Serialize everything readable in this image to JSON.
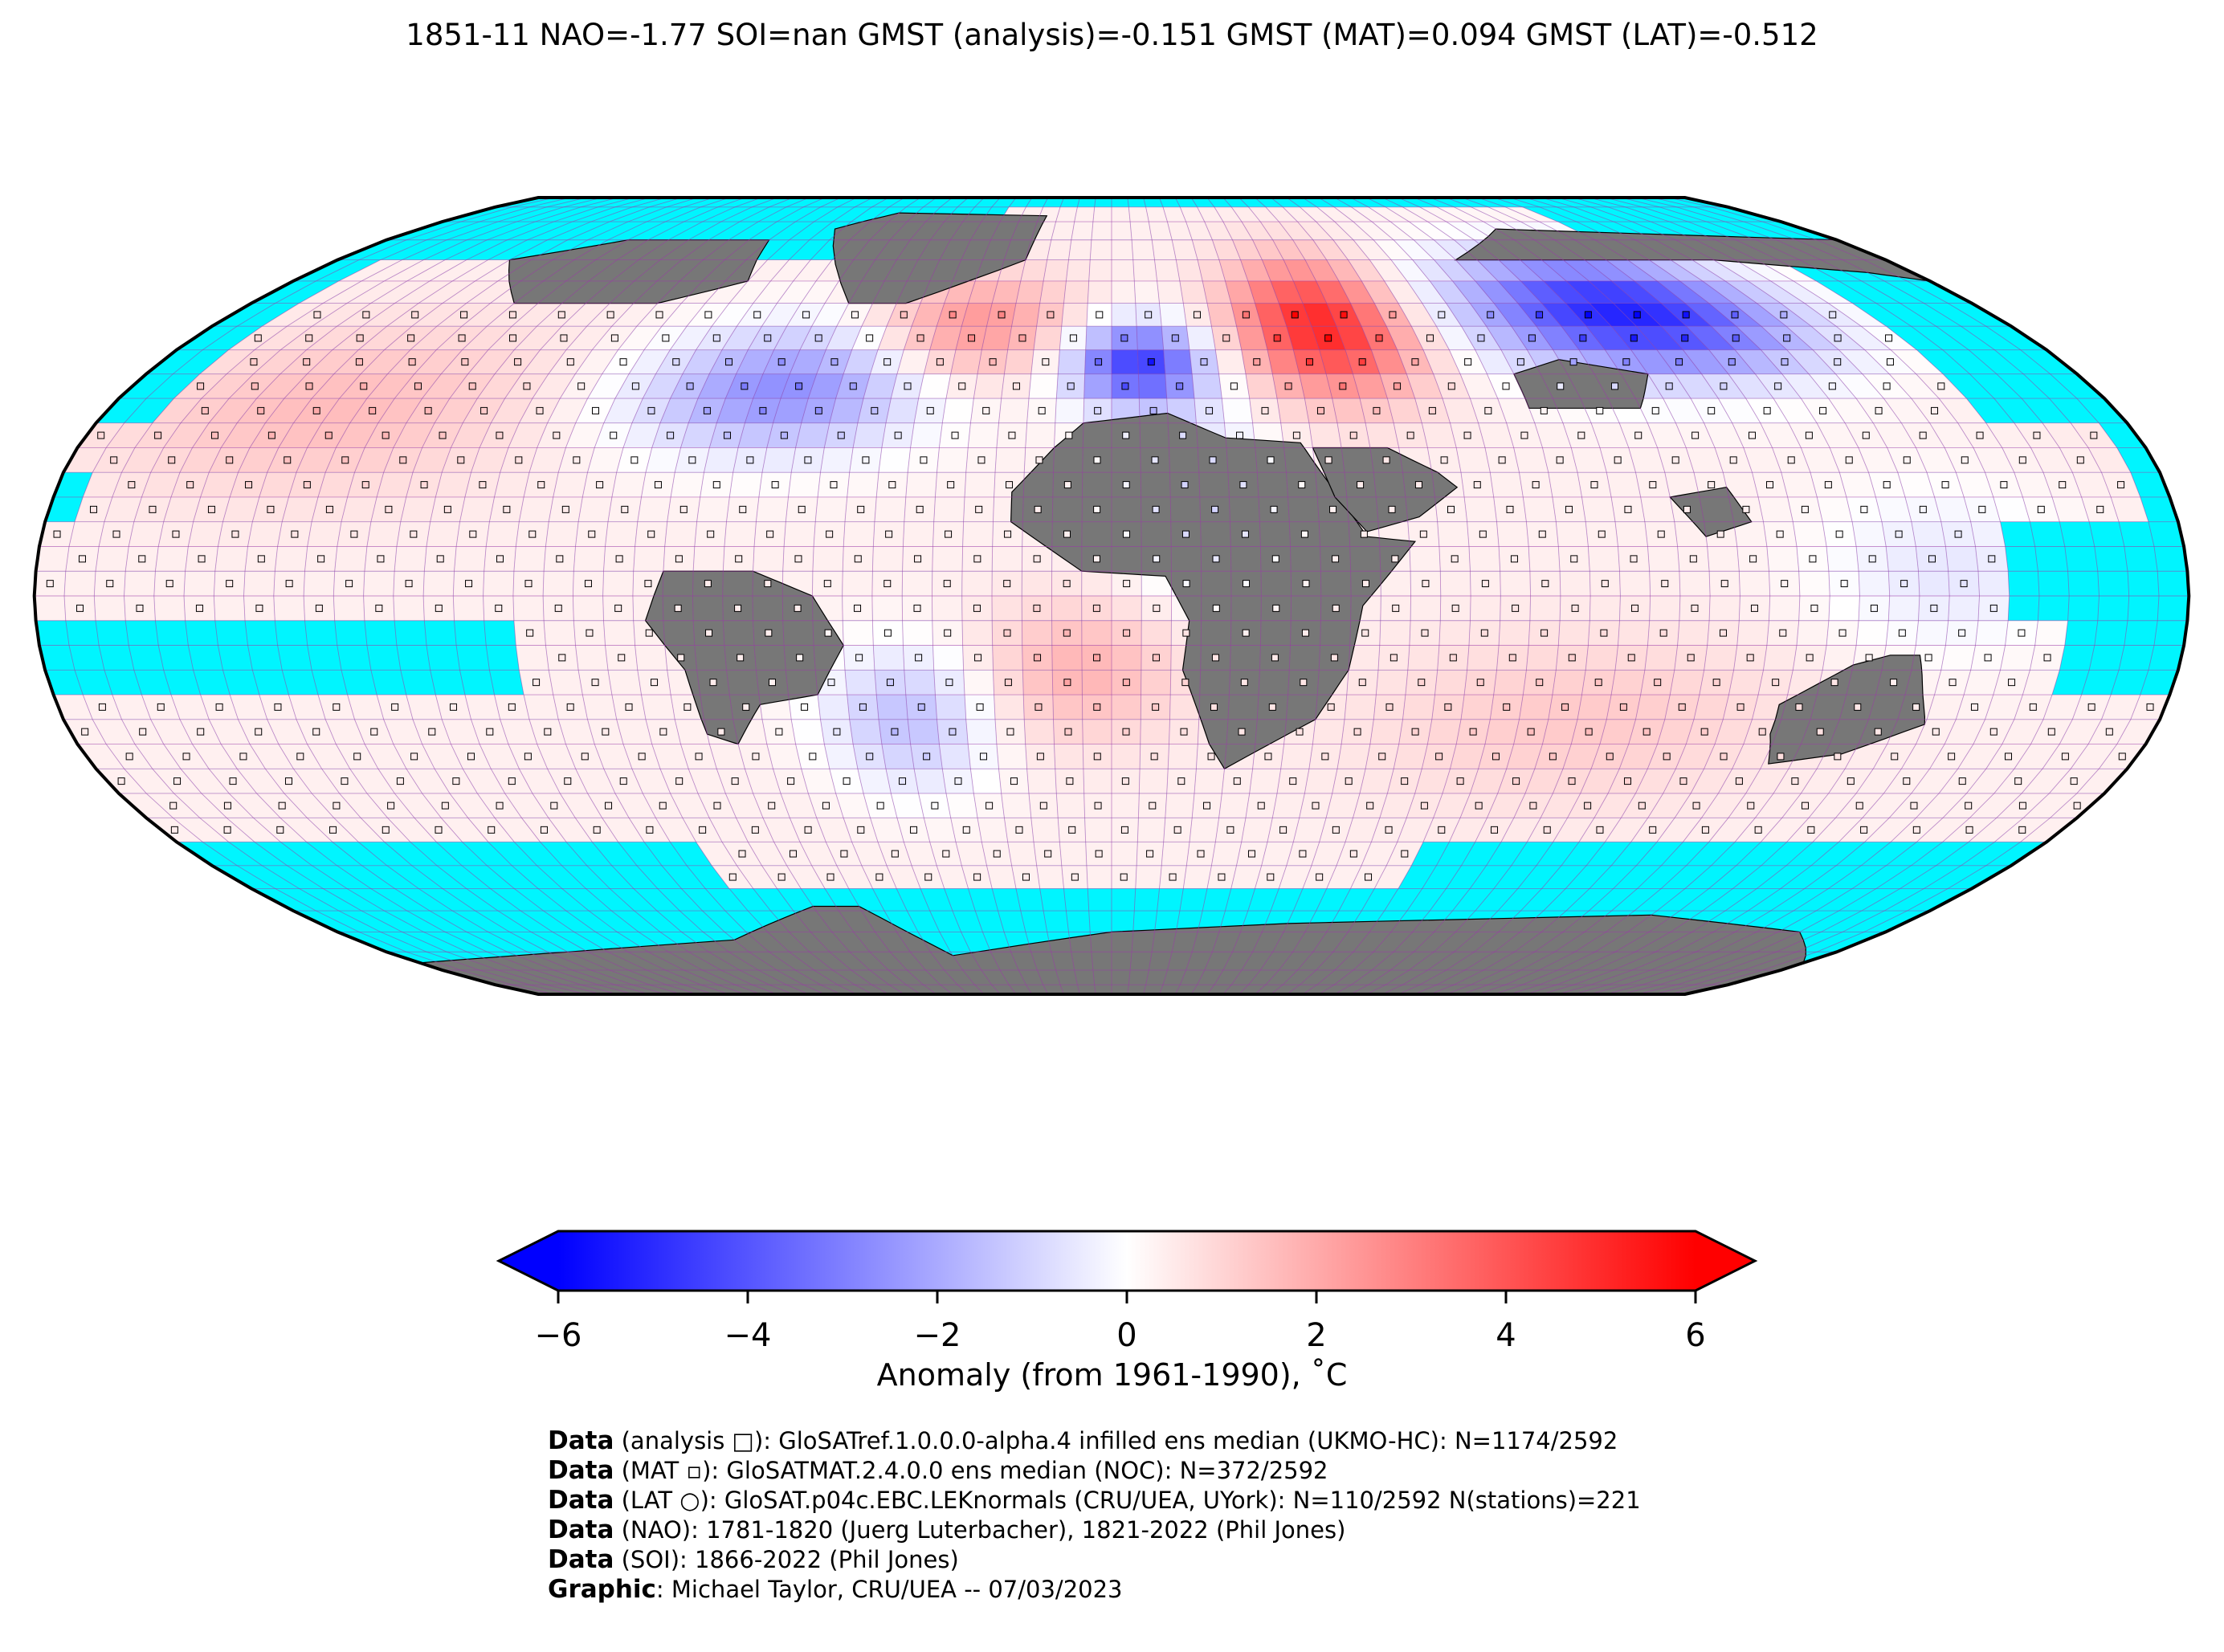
{
  "title": "1851-11 NAO=-1.77 SOI=nan GMST (analysis)=-0.151 GMST (MAT)=0.094 GMST (LAT)=-0.512",
  "map": {
    "projection": "Robinson",
    "ocean_color": "#00f5ff",
    "land_nodata_color": "#777777",
    "grid_line_color": "#9b3aa8",
    "coastline_color": "#000000",
    "grid_resolution_deg": 5,
    "anomaly_regions": [
      {
        "region": "North Atlantic / North America east",
        "anomaly": -3.0
      },
      {
        "region": "Western Europe",
        "anomaly": -5.0
      },
      {
        "region": "Eastern Europe / Western Russia",
        "anomaly": 5.0
      },
      {
        "region": "Central Siberia",
        "anomaly": -5.5
      },
      {
        "region": "Mid North Atlantic",
        "anomaly": 2.5
      },
      {
        "region": "North Pacific",
        "anomaly": 1.0
      },
      {
        "region": "South Atlantic off Brazil",
        "anomaly": -2.0
      },
      {
        "region": "South Atlantic central",
        "anomaly": 1.5
      },
      {
        "region": "Indian Ocean",
        "anomaly": 1.0
      },
      {
        "region": "Western Pacific tropics",
        "anomaly": -1.0
      }
    ]
  },
  "colorbar": {
    "colormap": "bwr",
    "min": -6,
    "max": 6,
    "extend": "both",
    "tick_labels": [
      "−6",
      "−4",
      "−2",
      "0",
      "2",
      "4",
      "6"
    ],
    "tick_values": [
      -6,
      -4,
      -2,
      0,
      2,
      4,
      6
    ],
    "label": "Anomaly (from 1961-1990), ˚C"
  },
  "credits": [
    {
      "bold": "Data",
      "text": " (analysis □): GloSATref.1.0.0.0-alpha.4 infilled ens median (UKMO-HC): N=1174/2592"
    },
    {
      "bold": "Data",
      "text": " (MAT ▫): GloSATMAT.2.4.0.0 ens median (NOC): N=372/2592"
    },
    {
      "bold": "Data",
      "text": " (LAT ○): GloSAT.p04c.EBC.LEKnormals (CRU/UEA, UYork): N=110/2592 N(stations)=221"
    },
    {
      "bold": "Data",
      "text": " (NAO): 1781-1820 (Juerg Luterbacher), 1821-2022 (Phil Jones)"
    },
    {
      "bold": "Data",
      "text": " (SOI): 1866-2022 (Phil Jones)"
    },
    {
      "bold": "Graphic",
      "text": ": Michael Taylor, CRU/UEA -- 07/03/2023"
    }
  ]
}
